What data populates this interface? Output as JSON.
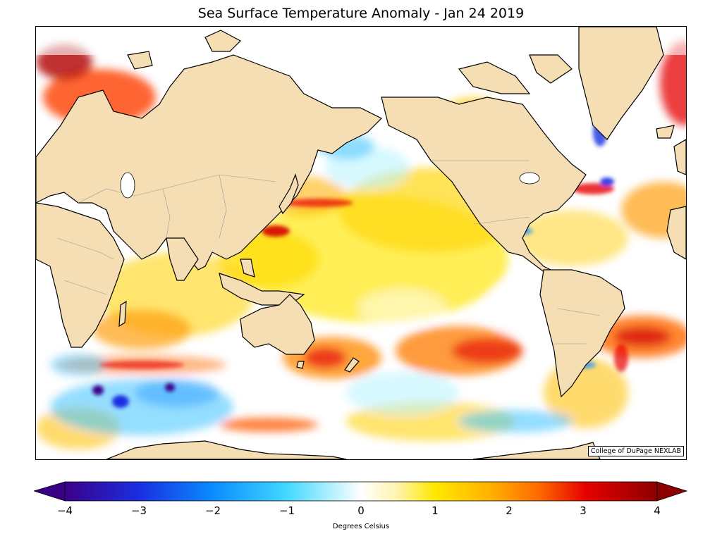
{
  "title": "Sea Surface Temperature Anomaly - Jan 24 2019",
  "credit": "College of DuPage NEXLAB",
  "colorbar": {
    "label": "Degrees Celsius",
    "min": -4,
    "max": 4,
    "ticks": [
      "−4",
      "−3",
      "−2",
      "−1",
      "0",
      "1",
      "2",
      "3",
      "4"
    ],
    "colors": [
      "#3b0088",
      "#0033ee",
      "#0a8cff",
      "#43c4ff",
      "#b8f4ff",
      "#ffffff",
      "#fff4b0",
      "#ffe800",
      "#ffb000",
      "#ff6a00",
      "#e60000",
      "#8c0000"
    ]
  },
  "map": {
    "land_color": "#f5deb3",
    "ocean_base": "#ffffff",
    "coastline_color": "#000000",
    "border_color": "#999999"
  }
}
